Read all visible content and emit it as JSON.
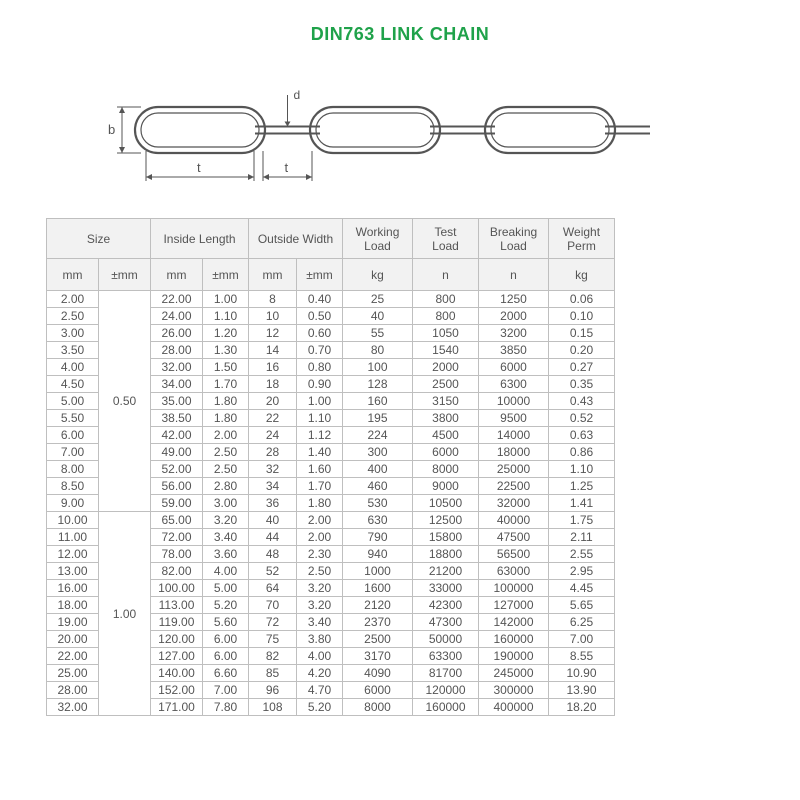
{
  "title": "DIN763 LINK CHAIN",
  "title_color": "#1fa24a",
  "text_color": "#555555",
  "border_color": "#bfbfbf",
  "header_bg": "#f2f2f2",
  "diagram": {
    "stroke": "#555555",
    "labels": {
      "b": "b",
      "t": "t",
      "d": "d"
    }
  },
  "table": {
    "group_headers": [
      {
        "label": "Size",
        "span": 2
      },
      {
        "label": "Inside Length",
        "span": 2
      },
      {
        "label": "Outside Width",
        "span": 2
      },
      {
        "label": "Working\nLoad",
        "span": 1
      },
      {
        "label": "Test\nLoad",
        "span": 1
      },
      {
        "label": "Breaking\nLoad",
        "span": 1
      },
      {
        "label": "Weight\nPerm",
        "span": 1
      }
    ],
    "unit_headers": [
      "mm",
      "±mm",
      "mm",
      "±mm",
      "mm",
      "±mm",
      "kg",
      "n",
      "n",
      "kg"
    ],
    "col_classes": [
      "c-size",
      "c-tol",
      "c-il",
      "c-ilt",
      "c-ow",
      "c-owt",
      "c-wl",
      "c-tl",
      "c-bl",
      "c-wp"
    ],
    "groups": [
      {
        "tolerance": "0.50",
        "rows": [
          [
            "2.00",
            "22.00",
            "1.00",
            "8",
            "0.40",
            "25",
            "800",
            "1250",
            "0.06"
          ],
          [
            "2.50",
            "24.00",
            "1.10",
            "10",
            "0.50",
            "40",
            "800",
            "2000",
            "0.10"
          ],
          [
            "3.00",
            "26.00",
            "1.20",
            "12",
            "0.60",
            "55",
            "1050",
            "3200",
            "0.15"
          ],
          [
            "3.50",
            "28.00",
            "1.30",
            "14",
            "0.70",
            "80",
            "1540",
            "3850",
            "0.20"
          ],
          [
            "4.00",
            "32.00",
            "1.50",
            "16",
            "0.80",
            "100",
            "2000",
            "6000",
            "0.27"
          ],
          [
            "4.50",
            "34.00",
            "1.70",
            "18",
            "0.90",
            "128",
            "2500",
            "6300",
            "0.35"
          ],
          [
            "5.00",
            "35.00",
            "1.80",
            "20",
            "1.00",
            "160",
            "3150",
            "10000",
            "0.43"
          ],
          [
            "5.50",
            "38.50",
            "1.80",
            "22",
            "1.10",
            "195",
            "3800",
            "9500",
            "0.52"
          ],
          [
            "6.00",
            "42.00",
            "2.00",
            "24",
            "1.12",
            "224",
            "4500",
            "14000",
            "0.63"
          ],
          [
            "7.00",
            "49.00",
            "2.50",
            "28",
            "1.40",
            "300",
            "6000",
            "18000",
            "0.86"
          ],
          [
            "8.00",
            "52.00",
            "2.50",
            "32",
            "1.60",
            "400",
            "8000",
            "25000",
            "1.10"
          ],
          [
            "8.50",
            "56.00",
            "2.80",
            "34",
            "1.70",
            "460",
            "9000",
            "22500",
            "1.25"
          ],
          [
            "9.00",
            "59.00",
            "3.00",
            "36",
            "1.80",
            "530",
            "10500",
            "32000",
            "1.41"
          ]
        ]
      },
      {
        "tolerance": "1.00",
        "rows": [
          [
            "10.00",
            "65.00",
            "3.20",
            "40",
            "2.00",
            "630",
            "12500",
            "40000",
            "1.75"
          ],
          [
            "11.00",
            "72.00",
            "3.40",
            "44",
            "2.00",
            "790",
            "15800",
            "47500",
            "2.11"
          ],
          [
            "12.00",
            "78.00",
            "3.60",
            "48",
            "2.30",
            "940",
            "18800",
            "56500",
            "2.55"
          ],
          [
            "13.00",
            "82.00",
            "4.00",
            "52",
            "2.50",
            "1000",
            "21200",
            "63000",
            "2.95"
          ],
          [
            "16.00",
            "100.00",
            "5.00",
            "64",
            "3.20",
            "1600",
            "33000",
            "100000",
            "4.45"
          ],
          [
            "18.00",
            "113.00",
            "5.20",
            "70",
            "3.20",
            "2120",
            "42300",
            "127000",
            "5.65"
          ],
          [
            "19.00",
            "119.00",
            "5.60",
            "72",
            "3.40",
            "2370",
            "47300",
            "142000",
            "6.25"
          ],
          [
            "20.00",
            "120.00",
            "6.00",
            "75",
            "3.80",
            "2500",
            "50000",
            "160000",
            "7.00"
          ],
          [
            "22.00",
            "127.00",
            "6.00",
            "82",
            "4.00",
            "3170",
            "63300",
            "190000",
            "8.55"
          ],
          [
            "25.00",
            "140.00",
            "6.60",
            "85",
            "4.20",
            "4090",
            "81700",
            "245000",
            "10.90"
          ],
          [
            "28.00",
            "152.00",
            "7.00",
            "96",
            "4.70",
            "6000",
            "120000",
            "300000",
            "13.90"
          ],
          [
            "32.00",
            "171.00",
            "7.80",
            "108",
            "5.20",
            "8000",
            "160000",
            "400000",
            "18.20"
          ]
        ]
      }
    ]
  }
}
